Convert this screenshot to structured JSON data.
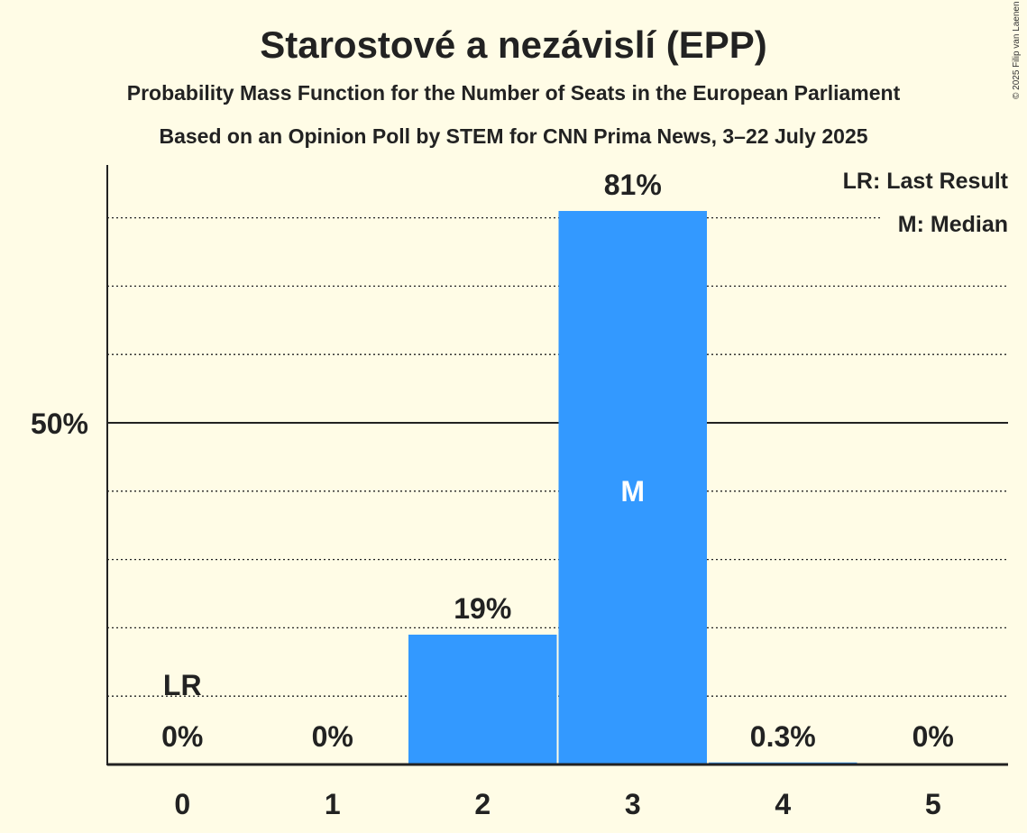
{
  "title": "Starostové a nezávislí (EPP)",
  "subtitle1": "Probability Mass Function for the Number of Seats in the European Parliament",
  "subtitle2": "Based on an Opinion Poll by STEM for CNN Prima News, 3–22 July 2025",
  "copyright": "© 2025 Filip van Laenen",
  "chart_data": {
    "type": "bar",
    "categories": [
      "0",
      "1",
      "2",
      "3",
      "4",
      "5"
    ],
    "values": [
      0,
      0,
      19,
      81,
      0.3,
      0
    ],
    "value_labels": [
      "0%",
      "0%",
      "19%",
      "81%",
      "0.3%",
      "0%"
    ],
    "ylim": [
      0,
      88
    ],
    "y_ticks": [
      {
        "value": 50,
        "label": "50%"
      }
    ],
    "grid_step": 10,
    "bar_color": "#3399ff",
    "last_result_index": 0,
    "last_result_marker": "LR",
    "median_index": 3,
    "median_marker": "M",
    "legend": [
      "LR: Last Result",
      "M: Median"
    ],
    "legend_position": "top-right"
  }
}
